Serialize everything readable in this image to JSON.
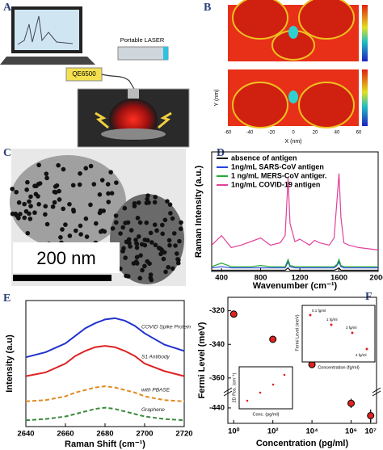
{
  "panels": {
    "a": {
      "label": "A",
      "laser": "Portable LASER",
      "spectrometer": "QE6500"
    },
    "b": {
      "label": "B",
      "y_label": "Y (nm)",
      "x_label": "X (nm)",
      "xticks": [
        -60,
        -40,
        -20,
        0,
        20,
        40,
        60
      ]
    },
    "c": {
      "label": "C",
      "scale_bar": "200 nm"
    },
    "f_insets": [
      {
        "y_label": "Fermi Level (meV)",
        "x_label": "Concentration (fg/ml)",
        "point_labels": [
          "0.1 fg/ml",
          "1 fg/ml",
          "3 fg/ml",
          "4 fg/ml"
        ]
      },
      {
        "y_label": "2D Pos. (cm⁻¹)",
        "x_label": "Conc. (pg/ml)"
      }
    ]
  },
  "chart_data": [
    {
      "type": "line",
      "panel": "D",
      "x_label": "Wavenumber (cm⁻¹)",
      "y_label": "Raman Intensity (a.u.)",
      "x": [
        300,
        400,
        500,
        600,
        700,
        800,
        900,
        1000,
        1050,
        1080,
        1100,
        1150,
        1200,
        1300,
        1350,
        1400,
        1500,
        1550,
        1580,
        1600,
        1620,
        1650,
        1700,
        1800,
        1900,
        2000
      ],
      "xlim": [
        300,
        2000
      ],
      "xticks": [
        400,
        800,
        1200,
        1600,
        2000
      ],
      "ylim": [
        0,
        100
      ],
      "series": [
        {
          "name": "absence of antigen",
          "color": "#111111",
          "values": [
            1,
            1,
            1,
            1,
            1,
            1,
            1,
            1,
            1,
            3,
            1,
            1,
            1,
            1,
            1,
            1,
            1,
            1,
            2,
            3,
            1,
            1,
            1,
            1,
            1,
            1
          ]
        },
        {
          "name": "1ng/mL  SARS-CoV antigen",
          "color": "#2244dd",
          "values": [
            3,
            4,
            3,
            3,
            3,
            3,
            3,
            3,
            3,
            8,
            4,
            3,
            3,
            3,
            3,
            3,
            3,
            3,
            5,
            8,
            4,
            3,
            3,
            3,
            3,
            3
          ]
        },
        {
          "name": "1 ng/mL  MERS-CoV antiger.",
          "color": "#22aa33",
          "values": [
            4,
            7,
            4,
            4,
            4,
            5,
            4,
            4,
            4,
            10,
            5,
            4,
            4,
            4,
            4,
            4,
            4,
            4,
            6,
            10,
            5,
            4,
            4,
            4,
            4,
            4
          ]
        },
        {
          "name": "1ng/mL COVID-19 antigen",
          "color": "#e0409a",
          "values": [
            22,
            30,
            20,
            22,
            25,
            28,
            22,
            24,
            30,
            78,
            40,
            25,
            27,
            22,
            26,
            24,
            22,
            28,
            60,
            82,
            45,
            24,
            22,
            20,
            19,
            18
          ]
        }
      ]
    },
    {
      "type": "line",
      "panel": "E",
      "x_label": "Raman Shift (cm⁻¹)",
      "y_label": "Intensity (a.u)",
      "x": [
        2640,
        2650,
        2660,
        2665,
        2670,
        2675,
        2680,
        2685,
        2690,
        2695,
        2700,
        2710,
        2720
      ],
      "xlim": [
        2640,
        2720
      ],
      "xticks": [
        2640,
        2660,
        2680,
        2700,
        2720
      ],
      "ylim": [
        0,
        100
      ],
      "series": [
        {
          "name": "Graphene",
          "color": "#3a8a3a",
          "dash": true,
          "values": [
            5,
            6,
            8,
            10,
            12,
            14,
            15,
            14,
            12,
            10,
            8,
            6,
            5
          ]
        },
        {
          "name": "with PBASE",
          "color": "#e08a20",
          "dash": true,
          "values": [
            20,
            21,
            24,
            27,
            29,
            31,
            32,
            31,
            29,
            27,
            24,
            21,
            20
          ]
        },
        {
          "name": "S1 Antibody",
          "color": "#dd2222",
          "dash": false,
          "values": [
            40,
            43,
            50,
            56,
            60,
            63,
            64,
            63,
            60,
            56,
            50,
            44,
            40
          ]
        },
        {
          "name": "COVID Spike Protein",
          "color": "#2233cc",
          "dash": false,
          "values": [
            55,
            59,
            66,
            72,
            78,
            82,
            85,
            86,
            84,
            80,
            74,
            65,
            60
          ]
        }
      ]
    },
    {
      "type": "scatter",
      "panel": "F",
      "x_label": "Concentration (pg/ml)",
      "y_label": "Fermi Level (meV)",
      "x_log": true,
      "xlim": [
        0.5,
        20000000
      ],
      "xticks": [
        {
          "value": 1,
          "label": "10⁰"
        },
        {
          "value": 100,
          "label": "10²"
        },
        {
          "value": 10000,
          "label": "10⁴"
        },
        {
          "value": 1000000,
          "label": "10⁶"
        },
        {
          "value": 10000000,
          "label": "10⁷"
        }
      ],
      "ylim": [
        -450,
        -312
      ],
      "y_break": [
        -366,
        -432
      ],
      "yticks": [
        -320,
        -340,
        -360,
        -440
      ],
      "color": "#dd2222",
      "x": [
        1,
        100,
        10000,
        1000000,
        10000000
      ],
      "values": [
        -322,
        -337,
        -352,
        -437,
        -445
      ],
      "errors": [
        2,
        2,
        2,
        3,
        4
      ]
    }
  ]
}
